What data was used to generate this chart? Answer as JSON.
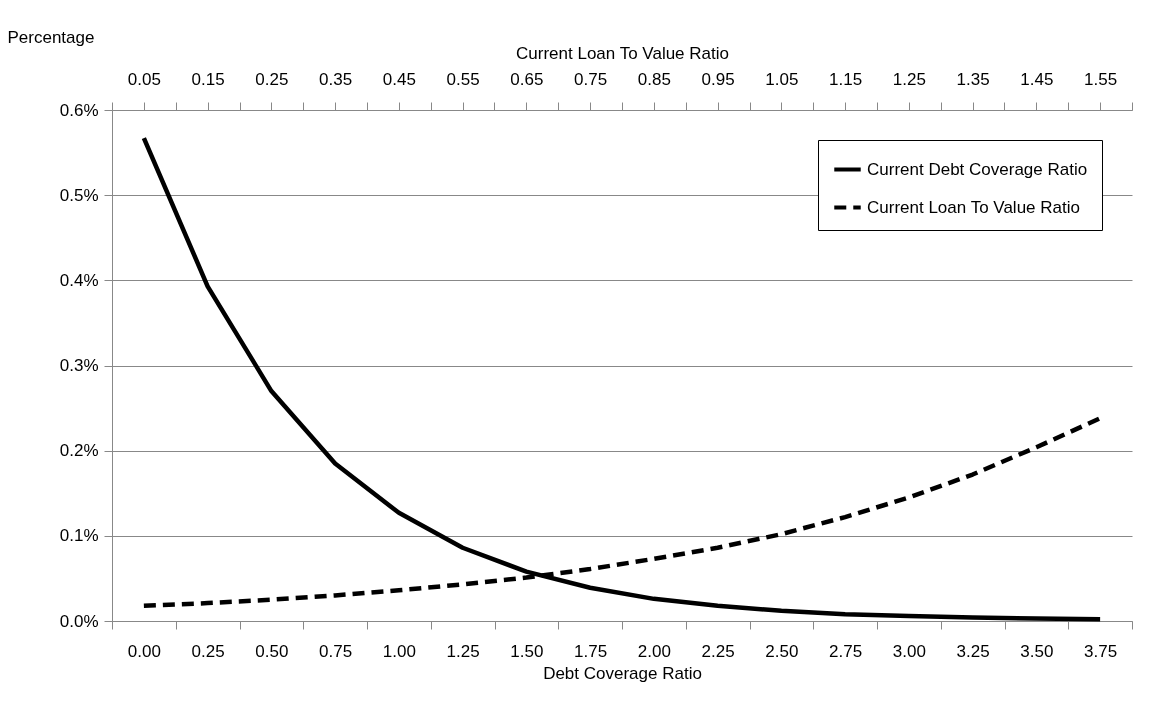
{
  "chart_data": {
    "type": "line",
    "xlabel": "Debt Coverage Ratio",
    "x2label": "Current Loan To Value Ratio",
    "ylabel": "Percentage",
    "categories": [
      "0.00",
      "0.25",
      "0.50",
      "0.75",
      "1.00",
      "1.25",
      "1.50",
      "1.75",
      "2.00",
      "2.25",
      "2.50",
      "2.75",
      "3.00",
      "3.25",
      "3.50",
      "3.75"
    ],
    "series": [
      {
        "name": "Current Debt Coverage Ratio",
        "color": "#000000",
        "line_style": "solid",
        "values": [
          0.567,
          0.393,
          0.27,
          0.185,
          0.127,
          0.086,
          0.058,
          0.039,
          0.026,
          0.018,
          0.012,
          0.008,
          0.006,
          0.004,
          0.003,
          0.002
        ]
      },
      {
        "name": "Current Loan To Value Ratio",
        "color": "#000000",
        "line_style": "dashed",
        "axis": "x2",
        "x": [
          0.05,
          0.15,
          0.25,
          0.35,
          0.45,
          0.55,
          0.65,
          0.75,
          0.85,
          0.95,
          1.05,
          1.15,
          1.25,
          1.35,
          1.45,
          1.55
        ],
        "values": [
          0.018,
          0.021,
          0.025,
          0.03,
          0.036,
          0.043,
          0.051,
          0.061,
          0.073,
          0.086,
          0.102,
          0.122,
          0.145,
          0.172,
          0.204,
          0.238
        ]
      }
    ],
    "ylim": [
      0,
      0.6
    ],
    "yticks": [
      {
        "value": 0,
        "label": "0.0%"
      },
      {
        "value": 0.1,
        "label": "0.1%"
      },
      {
        "value": 0.2,
        "label": "0.2%"
      },
      {
        "value": 0.3,
        "label": "0.3%"
      },
      {
        "value": 0.4,
        "label": "0.4%"
      },
      {
        "value": 0.5,
        "label": "0.5%"
      },
      {
        "value": 0.6,
        "label": "0.6%"
      }
    ],
    "x2lim": [
      0,
      1.6
    ],
    "x2ticks": [
      {
        "value": 0,
        "label": null
      },
      0.05,
      {
        "value": 0.1,
        "label": null
      },
      0.15,
      {
        "value": 0.2,
        "label": null
      },
      0.25,
      {
        "value": 0.3,
        "label": null
      },
      0.35,
      {
        "value": 0.4,
        "label": null
      },
      0.45,
      {
        "value": 0.5,
        "label": null
      },
      0.55,
      {
        "value": 0.6,
        "label": null
      },
      0.65,
      {
        "value": 0.7,
        "label": null
      },
      0.75,
      {
        "value": 0.8,
        "label": null
      },
      0.85,
      {
        "value": 0.9,
        "label": null
      },
      0.95,
      {
        "value": 1.0,
        "label": null
      },
      1.05,
      {
        "value": 1.1,
        "label": null
      },
      1.15,
      {
        "value": 1.2,
        "label": null
      },
      1.25,
      {
        "value": 1.3,
        "label": null
      },
      1.35,
      {
        "value": 1.4,
        "label": null
      },
      1.45,
      {
        "value": 1.5,
        "label": null
      },
      1.55,
      {
        "value": 1.6,
        "label": null
      }
    ],
    "grid": "y",
    "legend": "top right",
    "marker": "none"
  }
}
